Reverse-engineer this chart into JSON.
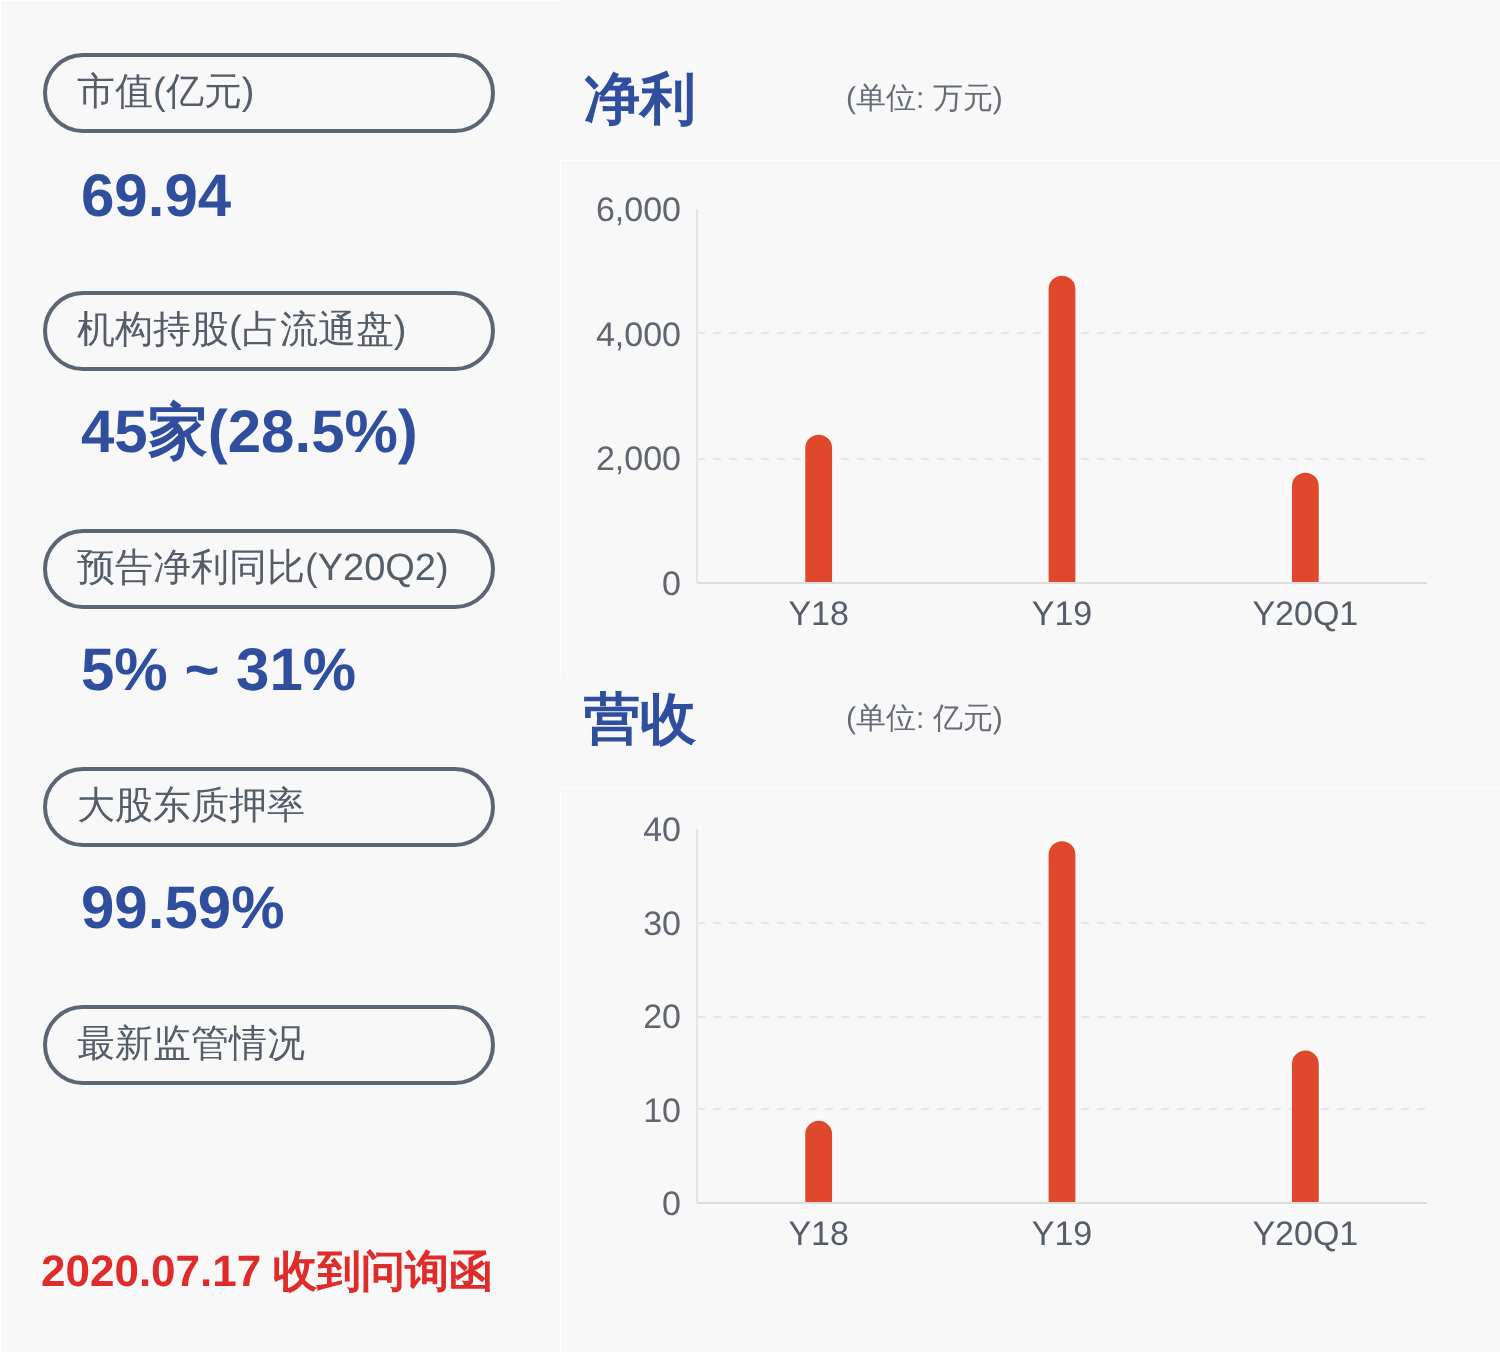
{
  "chart_data": [
    {
      "type": "other",
      "annotations": [
        "市值(亿元)",
        "69.94",
        "机构持股(占流通盘)",
        "45家(28.5%)",
        "预告净利同比(Y20Q2)",
        "5% ~ 31%",
        "大股东质押率",
        "99.59%",
        "最新监管情况",
        "2020.07.17 收到问询函"
      ]
    },
    {
      "type": "bar",
      "title": "净利",
      "subtitle": "(单位: 万元)",
      "categories": [
        "Y18",
        "Y19",
        "Y20Q1"
      ],
      "values": [
        2380,
        4930,
        1770
      ],
      "color": "#e0482c",
      "ylim": [
        0,
        6000
      ],
      "yticks": [
        0,
        {
          "value": 2000,
          "label": "2,000"
        },
        {
          "value": 4000,
          "label": "4,000"
        },
        {
          "value": 6000,
          "label": "6,000"
        }
      ],
      "grid": "y"
    },
    {
      "type": "bar",
      "title": "营收",
      "subtitle": "(单位: 亿元)",
      "categories": [
        "Y18",
        "Y19",
        "Y20Q1"
      ],
      "values": [
        8.8,
        38.7,
        16.3
      ],
      "color": "#e0482c",
      "ylim": [
        0,
        40
      ],
      "yticks": [
        0,
        10,
        20,
        30,
        40
      ],
      "grid": "y"
    }
  ]
}
